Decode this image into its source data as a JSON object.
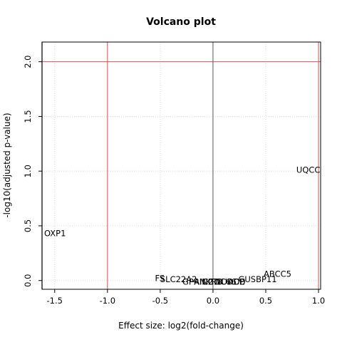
{
  "chart_data": {
    "type": "scatter",
    "title": "Volcano plot",
    "xlabel": "Effect size: log2(fold-change)",
    "ylabel": "-log10(adjusted p-value)",
    "xlim": [
      -1.62,
      1.02
    ],
    "ylim": [
      -0.08,
      2.18
    ],
    "xticks": [
      -1.5,
      -1.0,
      -0.5,
      0.0,
      0.5,
      1.0
    ],
    "xtick_labels": [
      "-1.5",
      "-1.0",
      "-0.5",
      "0.0",
      "0.5",
      "1.0"
    ],
    "yticks": [
      0.0,
      0.5,
      1.0,
      1.5,
      2.0
    ],
    "ytick_labels": [
      "0.0",
      "0.5",
      "1.0",
      "1.5",
      "2.0"
    ],
    "grid": true,
    "threshold_lines": {
      "vertical": [
        -1.0,
        1.0
      ],
      "horizontal": [
        2.0
      ],
      "color": "#d9534f"
    },
    "zero_line": {
      "x": 0.0,
      "color": "#555555"
    },
    "points": [
      {
        "label": "UQCC",
        "x": 0.79,
        "y": 1.01
      },
      {
        "label": "OXP1",
        "x": -1.6,
        "y": 0.43
      },
      {
        "label": "ABCC5",
        "x": 0.48,
        "y": 0.06
      },
      {
        "label": "GUSBP11",
        "x": 0.24,
        "y": 0.01
      },
      {
        "label": "FS",
        "x": -0.55,
        "y": 0.02
      },
      {
        "label": "SLC22A2",
        "x": -0.5,
        "y": 0.01
      },
      {
        "label": "GPRIN2",
        "x": -0.29,
        "y": -0.01
      },
      {
        "label": "ANKRD",
        "x": -0.18,
        "y": -0.01
      },
      {
        "label": "CCDC66",
        "x": -0.1,
        "y": -0.01
      },
      {
        "label": "NUDCD",
        "x": 0.02,
        "y": -0.01
      },
      {
        "label": "ADE",
        "x": 0.14,
        "y": -0.01
      }
    ]
  }
}
